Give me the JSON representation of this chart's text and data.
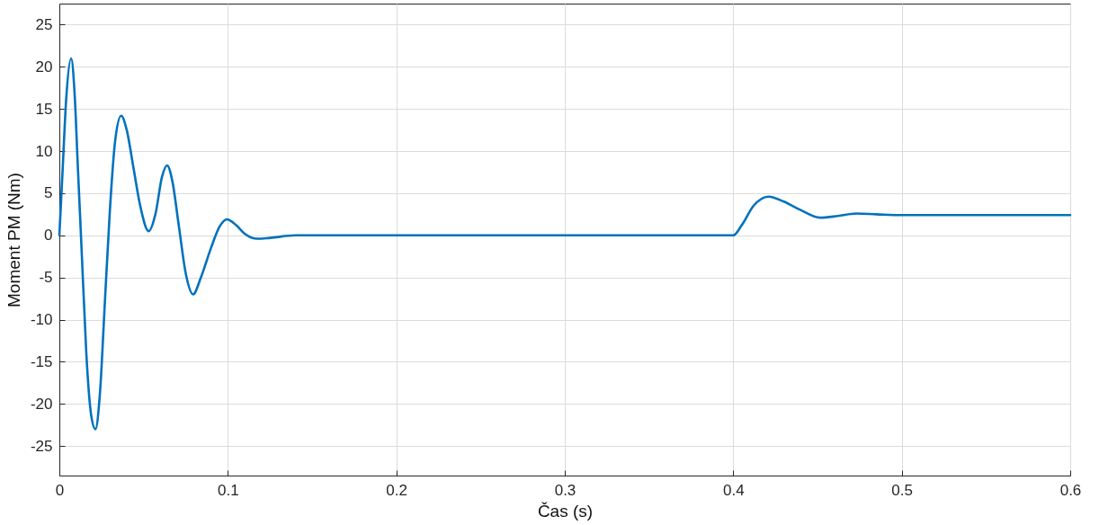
{
  "chart_data": {
    "type": "line",
    "xlabel": "Čas (s)",
    "ylabel": "Moment PM (Nm)",
    "xlim": [
      0,
      0.6
    ],
    "xticks": [
      0,
      0.1,
      0.2,
      0.3,
      0.4,
      0.5,
      0.6
    ],
    "ylim": [
      -28.5,
      27.5
    ],
    "yticks": [
      -25,
      -20,
      -15,
      -10,
      -5,
      0,
      5,
      10,
      15,
      20,
      25
    ],
    "grid": true,
    "legend": false,
    "marker": "none",
    "line_style": "solid",
    "series": [
      {
        "color": "#0072bd",
        "x": [
          0,
          0.002,
          0.004,
          0.007,
          0.009,
          0.011,
          0.0135,
          0.016,
          0.019,
          0.0214,
          0.024,
          0.027,
          0.03,
          0.033,
          0.0367,
          0.04,
          0.044,
          0.048,
          0.053,
          0.057,
          0.061,
          0.064,
          0.067,
          0.071,
          0.075,
          0.0794,
          0.084,
          0.09,
          0.095,
          0.0995,
          0.105,
          0.11,
          0.1175,
          0.125,
          0.14,
          0.16,
          0.4,
          0.405,
          0.412,
          0.421,
          0.43,
          0.44,
          0.4515,
          0.462,
          0.473,
          0.485,
          0.5,
          0.6
        ],
        "values": [
          0,
          8,
          16,
          21,
          17,
          8,
          -3,
          -14,
          -21.5,
          -23,
          -19,
          -8,
          3,
          11,
          14.2,
          12.5,
          8,
          3.5,
          0.5,
          2.5,
          7,
          8.3,
          6.5,
          1,
          -4.5,
          -7,
          -5,
          -1.5,
          1,
          1.9,
          1.2,
          0.2,
          -0.4,
          -0.3,
          0,
          0,
          0,
          1.2,
          3.5,
          4.6,
          4,
          3,
          2.1,
          2.3,
          2.6,
          2.5,
          2.4,
          2.4
        ]
      }
    ]
  }
}
